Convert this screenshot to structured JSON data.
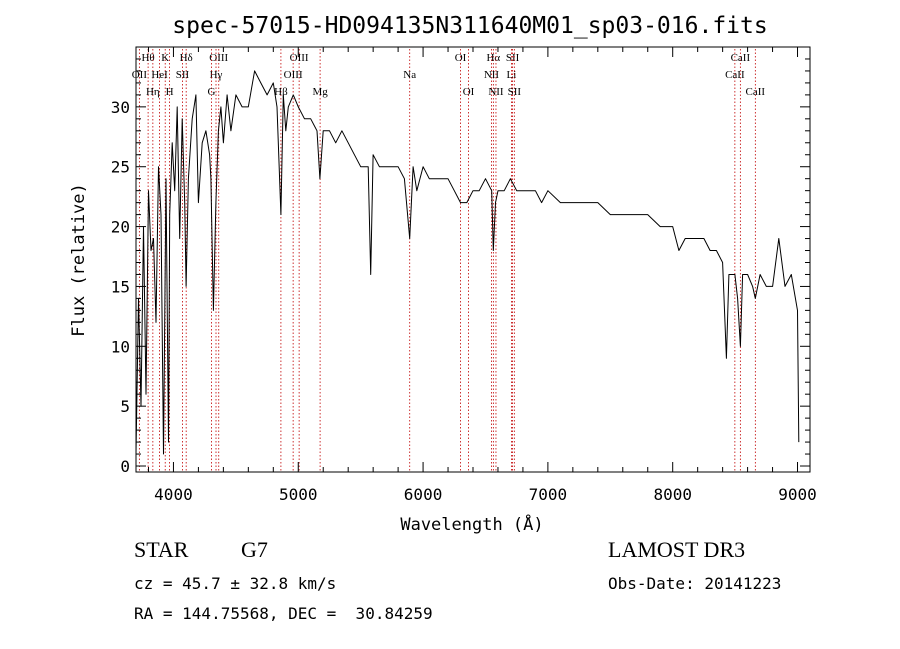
{
  "chart_data": {
    "type": "line",
    "title": "spec-57015-HD094135N311640M01_sp03-016.fits",
    "xlabel": "Wavelength (Å)",
    "ylabel": "Flux (relative)",
    "xlim": [
      3700,
      9100
    ],
    "ylim": [
      -0.5,
      35
    ],
    "xticks": [
      4000,
      5000,
      6000,
      7000,
      8000,
      9000
    ],
    "yticks": [
      0,
      5,
      10,
      15,
      20,
      25,
      30
    ],
    "series": [
      {
        "name": "flux",
        "x": [
          3700,
          3720,
          3740,
          3760,
          3780,
          3800,
          3820,
          3840,
          3860,
          3880,
          3900,
          3920,
          3940,
          3960,
          3970,
          3990,
          4010,
          4030,
          4050,
          4070,
          4090,
          4101,
          4120,
          4150,
          4180,
          4200,
          4230,
          4260,
          4290,
          4300,
          4320,
          4340,
          4360,
          4380,
          4400,
          4430,
          4460,
          4500,
          4550,
          4600,
          4650,
          4700,
          4750,
          4800,
          4830,
          4861,
          4880,
          4900,
          4920,
          4960,
          5000,
          5050,
          5100,
          5150,
          5173,
          5200,
          5250,
          5300,
          5350,
          5400,
          5450,
          5500,
          5560,
          5580,
          5600,
          5650,
          5700,
          5750,
          5800,
          5850,
          5893,
          5920,
          5950,
          6000,
          6050,
          6100,
          6150,
          6200,
          6250,
          6300,
          6350,
          6400,
          6450,
          6500,
          6550,
          6563,
          6580,
          6600,
          6650,
          6700,
          6750,
          6800,
          6850,
          6900,
          6950,
          7000,
          7100,
          7200,
          7300,
          7400,
          7500,
          7600,
          7700,
          7800,
          7900,
          8000,
          8050,
          8100,
          8150,
          8200,
          8250,
          8300,
          8350,
          8400,
          8430,
          8450,
          8498,
          8520,
          8542,
          8560,
          8600,
          8640,
          8662,
          8700,
          8750,
          8800,
          8850,
          8900,
          8950,
          9000,
          9010
        ],
        "y": [
          1,
          14,
          5,
          20,
          6,
          23,
          18,
          19,
          12,
          25,
          21,
          1,
          24,
          2,
          21,
          27,
          23,
          30,
          19,
          29,
          22,
          15,
          24,
          29,
          31,
          22,
          27,
          28,
          26,
          24,
          13,
          22,
          28,
          30,
          27,
          31,
          28,
          31,
          30,
          30,
          33,
          32,
          31,
          32,
          30,
          21,
          31,
          28,
          30,
          31,
          30,
          29,
          29,
          28,
          24,
          28,
          28,
          27,
          28,
          27,
          26,
          25,
          25,
          16,
          26,
          25,
          25,
          25,
          25,
          24,
          19,
          25,
          23,
          25,
          24,
          24,
          24,
          24,
          23,
          22,
          22,
          23,
          23,
          24,
          23,
          18,
          22,
          23,
          23,
          24,
          23,
          23,
          23,
          23,
          22,
          23,
          22,
          22,
          22,
          22,
          21,
          21,
          21,
          21,
          20,
          20,
          18,
          19,
          19,
          19,
          19,
          18,
          18,
          17,
          9,
          16,
          16,
          14,
          10,
          16,
          16,
          15,
          14,
          16,
          15,
          15,
          19,
          15,
          16,
          13,
          2
        ]
      }
    ],
    "spectral_lines": [
      {
        "label": "Hθ",
        "wave": 3797,
        "row": 1
      },
      {
        "label": "OII",
        "wave": 3727,
        "row": 2
      },
      {
        "label": "Hη",
        "wave": 3835,
        "row": 3
      },
      {
        "label": "K",
        "wave": 3934,
        "row": 1
      },
      {
        "label": "HeI",
        "wave": 3889,
        "row": 2
      },
      {
        "label": "H",
        "wave": 3969,
        "row": 3
      },
      {
        "label": "Hδ",
        "wave": 4102,
        "row": 1
      },
      {
        "label": "SII",
        "wave": 4072,
        "row": 2
      },
      {
        "label": "OIII",
        "wave": 4363,
        "row": 1
      },
      {
        "label": "Hγ",
        "wave": 4341,
        "row": 2
      },
      {
        "label": "G",
        "wave": 4305,
        "row": 3
      },
      {
        "label": "OIII",
        "wave": 5007,
        "row": 1
      },
      {
        "label": "OIII",
        "wave": 4959,
        "row": 2
      },
      {
        "label": "Hβ",
        "wave": 4861,
        "row": 3
      },
      {
        "label": "Mg",
        "wave": 5175,
        "row": 3
      },
      {
        "label": "Na",
        "wave": 5893,
        "row": 2
      },
      {
        "label": "OI",
        "wave": 6300,
        "row": 1
      },
      {
        "label": "OI",
        "wave": 6364,
        "row": 3
      },
      {
        "label": "Hα",
        "wave": 6563,
        "row": 1
      },
      {
        "label": "NII",
        "wave": 6548,
        "row": 2
      },
      {
        "label": "NII",
        "wave": 6584,
        "row": 3
      },
      {
        "label": "SII",
        "wave": 6717,
        "row": 1
      },
      {
        "label": "Li",
        "wave": 6708,
        "row": 2
      },
      {
        "label": "SII",
        "wave": 6731,
        "row": 3
      },
      {
        "label": "CaII",
        "wave": 8542,
        "row": 1
      },
      {
        "label": "CaII",
        "wave": 8498,
        "row": 2
      },
      {
        "label": "CaII",
        "wave": 8662,
        "row": 3
      }
    ]
  },
  "info": {
    "object_type": "STAR",
    "subclass": "G7",
    "survey": "LAMOST DR3",
    "cz": "cz = 45.7 ± 32.8 km/s",
    "obs_date": "Obs-Date: 20141223",
    "coords": "RA = 144.75568, DEC =  30.84259"
  },
  "colors": {
    "line": "#000000",
    "marker": "#c00000"
  }
}
